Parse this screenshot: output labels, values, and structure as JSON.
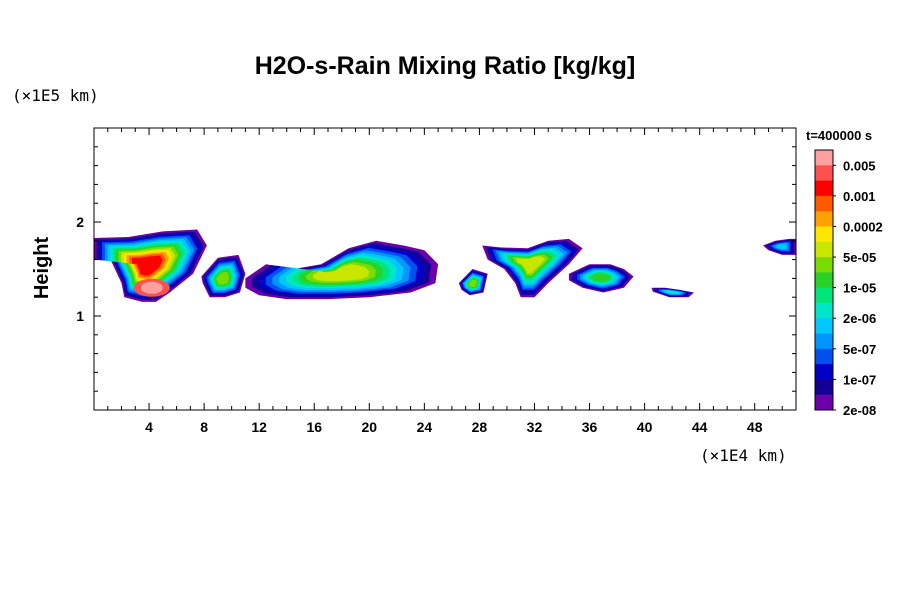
{
  "chart_data": {
    "type": "heatmap",
    "title": "H2O-s-Rain Mixing Ratio [kg/kg]",
    "xlabel": "",
    "ylabel": "Height",
    "x_unit": "(×1E4 km)",
    "y_unit": "(×1E5 km)",
    "time_label": "t=400000 s",
    "xlim": [
      0,
      51
    ],
    "ylim": [
      0,
      3
    ],
    "x_ticks": [
      4,
      8,
      12,
      16,
      20,
      24,
      28,
      32,
      36,
      40,
      44,
      48
    ],
    "y_ticks": [
      1,
      2
    ],
    "colorbar": {
      "labels": [
        "0.005",
        "0.001",
        "0.0002",
        "5e-05",
        "1e-05",
        "2e-06",
        "5e-07",
        "1e-07",
        "2e-08"
      ],
      "colors": [
        "#ffa0a0",
        "#ff5050",
        "#ff0000",
        "#ff5a00",
        "#ffa000",
        "#ffe600",
        "#c8e600",
        "#78dc00",
        "#28d228",
        "#00e678",
        "#00e6c8",
        "#00c8ff",
        "#0096ff",
        "#0050f0",
        "#0000c8",
        "#140096",
        "#6e00aa"
      ]
    },
    "cloud_blobs": [
      {
        "x": [
          0,
          2.5,
          5,
          7.5,
          8.2,
          7.2,
          5.5,
          4.5,
          3.5,
          2.2,
          2,
          1.2,
          0
        ],
        "y": [
          1.83,
          1.84,
          1.9,
          1.92,
          1.75,
          1.45,
          1.25,
          1.15,
          1.15,
          1.2,
          1.35,
          1.6,
          1.6
        ],
        "level": 14,
        "core_x": 4.2,
        "core_y": 1.3
      },
      {
        "x": [
          7.8,
          9,
          10.5,
          11,
          10.6,
          9.5,
          8.4,
          7.9
        ],
        "y": [
          1.42,
          1.62,
          1.65,
          1.45,
          1.25,
          1.2,
          1.2,
          1.35
        ],
        "level": 9
      },
      {
        "x": [
          11,
          12.5,
          14.5,
          16.5,
          18.5,
          20.5,
          22.5,
          24,
          25,
          24.8,
          23,
          20,
          17,
          14,
          12,
          11
        ],
        "y": [
          1.4,
          1.55,
          1.5,
          1.55,
          1.72,
          1.8,
          1.75,
          1.7,
          1.55,
          1.35,
          1.25,
          1.2,
          1.18,
          1.18,
          1.22,
          1.3
        ],
        "level": 10
      },
      {
        "x": [
          26.5,
          27.5,
          28.6,
          28.3,
          27.3,
          26.7
        ],
        "y": [
          1.35,
          1.5,
          1.45,
          1.25,
          1.22,
          1.28
        ],
        "level": 9
      },
      {
        "x": [
          28.2,
          29.5,
          31.5,
          33,
          34.5,
          35.5,
          34.5,
          33,
          32,
          31,
          30.6,
          29.8,
          28.6
        ],
        "y": [
          1.75,
          1.73,
          1.72,
          1.8,
          1.82,
          1.72,
          1.55,
          1.35,
          1.2,
          1.2,
          1.35,
          1.5,
          1.6
        ],
        "level": 10
      },
      {
        "x": [
          34.5,
          36,
          37.5,
          38.5,
          39.2,
          38.5,
          37,
          35.5,
          34.5
        ],
        "y": [
          1.45,
          1.55,
          1.55,
          1.5,
          1.42,
          1.3,
          1.25,
          1.3,
          1.38
        ],
        "level": 8
      },
      {
        "x": [
          40.5,
          41.5,
          42.5,
          43.6,
          43.2,
          41.8,
          40.6
        ],
        "y": [
          1.3,
          1.3,
          1.28,
          1.25,
          1.2,
          1.2,
          1.26
        ],
        "level": 6
      },
      {
        "x": [
          48.6,
          49.5,
          50.5,
          51,
          51,
          50,
          49
        ],
        "y": [
          1.75,
          1.8,
          1.82,
          1.82,
          1.65,
          1.65,
          1.7
        ],
        "level": 5
      }
    ]
  }
}
